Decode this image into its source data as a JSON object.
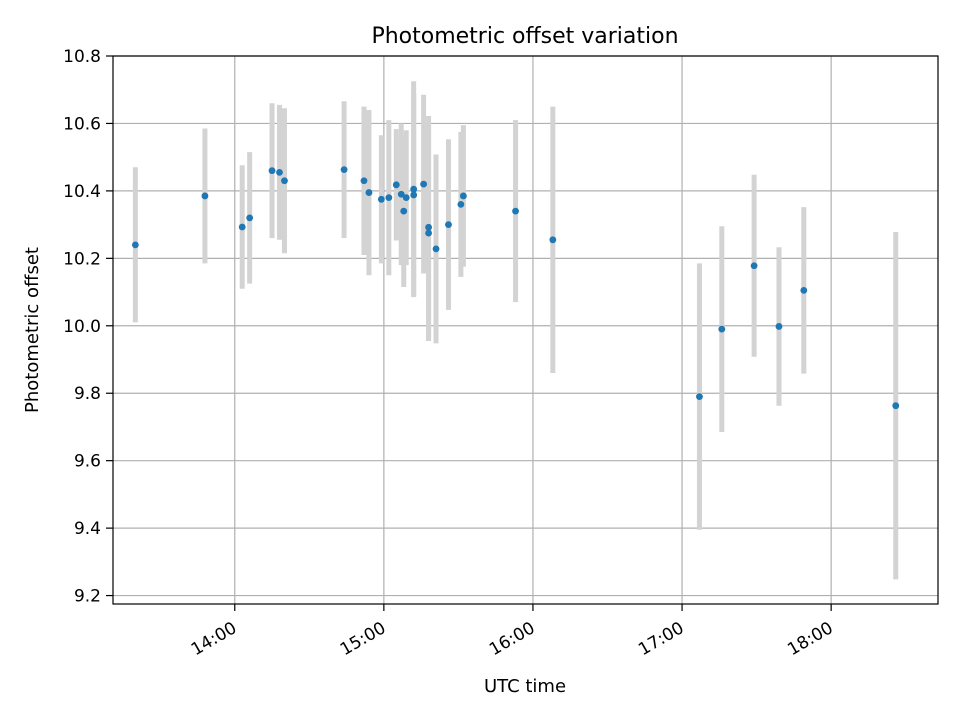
{
  "chart_data": {
    "type": "scatter",
    "title": "Photometric offset variation",
    "xlabel": "UTC time",
    "ylabel": "Photometric offset",
    "xlim": [
      "13:11",
      "18:43"
    ],
    "ylim": [
      9.175,
      10.8
    ],
    "yticks": [
      9.2,
      9.4,
      9.6,
      9.8,
      10.0,
      10.2,
      10.4,
      10.6,
      10.8
    ],
    "ytick_labels": [
      "9.2",
      "9.4",
      "9.6",
      "9.8",
      "10.0",
      "10.2",
      "10.4",
      "10.6",
      "10.8"
    ],
    "xticks": [
      "14:00",
      "15:00",
      "16:00",
      "17:00",
      "18:00"
    ],
    "xtick_labels": [
      "14:00",
      "15:00",
      "16:00",
      "17:00",
      "18:00"
    ],
    "grid": true,
    "colors": {
      "point": "#1f77b4",
      "errorbar": "#d3d3d3",
      "grid": "#b0b0b0"
    },
    "points": [
      {
        "x": "13:20",
        "y": 10.24,
        "yerr": 0.23
      },
      {
        "x": "13:48",
        "y": 10.385,
        "yerr": 0.2
      },
      {
        "x": "14:03",
        "y": 10.293,
        "yerr": 0.183
      },
      {
        "x": "14:06",
        "y": 10.32,
        "yerr": 0.195
      },
      {
        "x": "14:15",
        "y": 10.46,
        "yerr": 0.2
      },
      {
        "x": "14:18",
        "y": 10.455,
        "yerr": 0.2
      },
      {
        "x": "14:20",
        "y": 10.43,
        "yerr": 0.215
      },
      {
        "x": "14:44",
        "y": 10.463,
        "yerr": 0.203
      },
      {
        "x": "14:52",
        "y": 10.43,
        "yerr": 0.22
      },
      {
        "x": "14:54",
        "y": 10.395,
        "yerr": 0.245
      },
      {
        "x": "14:59",
        "y": 10.375,
        "yerr": 0.19
      },
      {
        "x": "15:02",
        "y": 10.38,
        "yerr": 0.23
      },
      {
        "x": "15:05",
        "y": 10.418,
        "yerr": 0.165
      },
      {
        "x": "15:07",
        "y": 10.39,
        "yerr": 0.21
      },
      {
        "x": "15:08",
        "y": 10.34,
        "yerr": 0.225
      },
      {
        "x": "15:09",
        "y": 10.38,
        "yerr": 0.2
      },
      {
        "x": "15:12",
        "y": 10.405,
        "yerr": 0.32
      },
      {
        "x": "15:12",
        "y": 10.388,
        "yerr": 0.3
      },
      {
        "x": "15:16",
        "y": 10.42,
        "yerr": 0.265
      },
      {
        "x": "15:18",
        "y": 10.292,
        "yerr": 0.33
      },
      {
        "x": "15:18",
        "y": 10.275,
        "yerr": 0.32
      },
      {
        "x": "15:21",
        "y": 10.228,
        "yerr": 0.28
      },
      {
        "x": "15:26",
        "y": 10.3,
        "yerr": 0.253
      },
      {
        "x": "15:31",
        "y": 10.36,
        "yerr": 0.215
      },
      {
        "x": "15:32",
        "y": 10.385,
        "yerr": 0.21
      },
      {
        "x": "15:53",
        "y": 10.34,
        "yerr": 0.27
      },
      {
        "x": "16:08",
        "y": 10.255,
        "yerr": 0.395
      },
      {
        "x": "17:07",
        "y": 9.79,
        "yerr": 0.395
      },
      {
        "x": "17:16",
        "y": 9.99,
        "yerr": 0.305
      },
      {
        "x": "17:29",
        "y": 10.178,
        "yerr": 0.27
      },
      {
        "x": "17:39",
        "y": 9.998,
        "yerr": 0.235
      },
      {
        "x": "17:49",
        "y": 10.105,
        "yerr": 0.247
      },
      {
        "x": "18:26",
        "y": 9.763,
        "yerr": 0.515
      }
    ]
  }
}
